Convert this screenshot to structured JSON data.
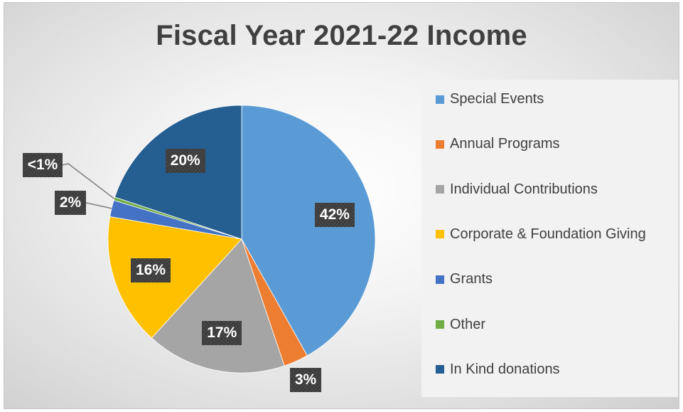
{
  "chart_data": {
    "type": "pie",
    "title": "Fiscal Year 2021-22 Income",
    "categories": [
      "Special Events",
      "Annual Programs",
      "Individual Contributions",
      "Corporate & Foundation Giving",
      "Grants",
      "Other",
      "In Kind donations"
    ],
    "values": [
      42,
      3,
      17,
      16,
      2,
      0.4,
      20
    ],
    "data_labels": [
      "42%",
      "3%",
      "17%",
      "16%",
      "2%",
      "<1%",
      "20%"
    ],
    "colors": [
      "#5b9bd5",
      "#ed7d31",
      "#a5a5a5",
      "#ffc000",
      "#4472c4",
      "#70ad47",
      "#255e91"
    ],
    "legend_position": "right",
    "start_angle": "12 o'clock, clockwise"
  }
}
